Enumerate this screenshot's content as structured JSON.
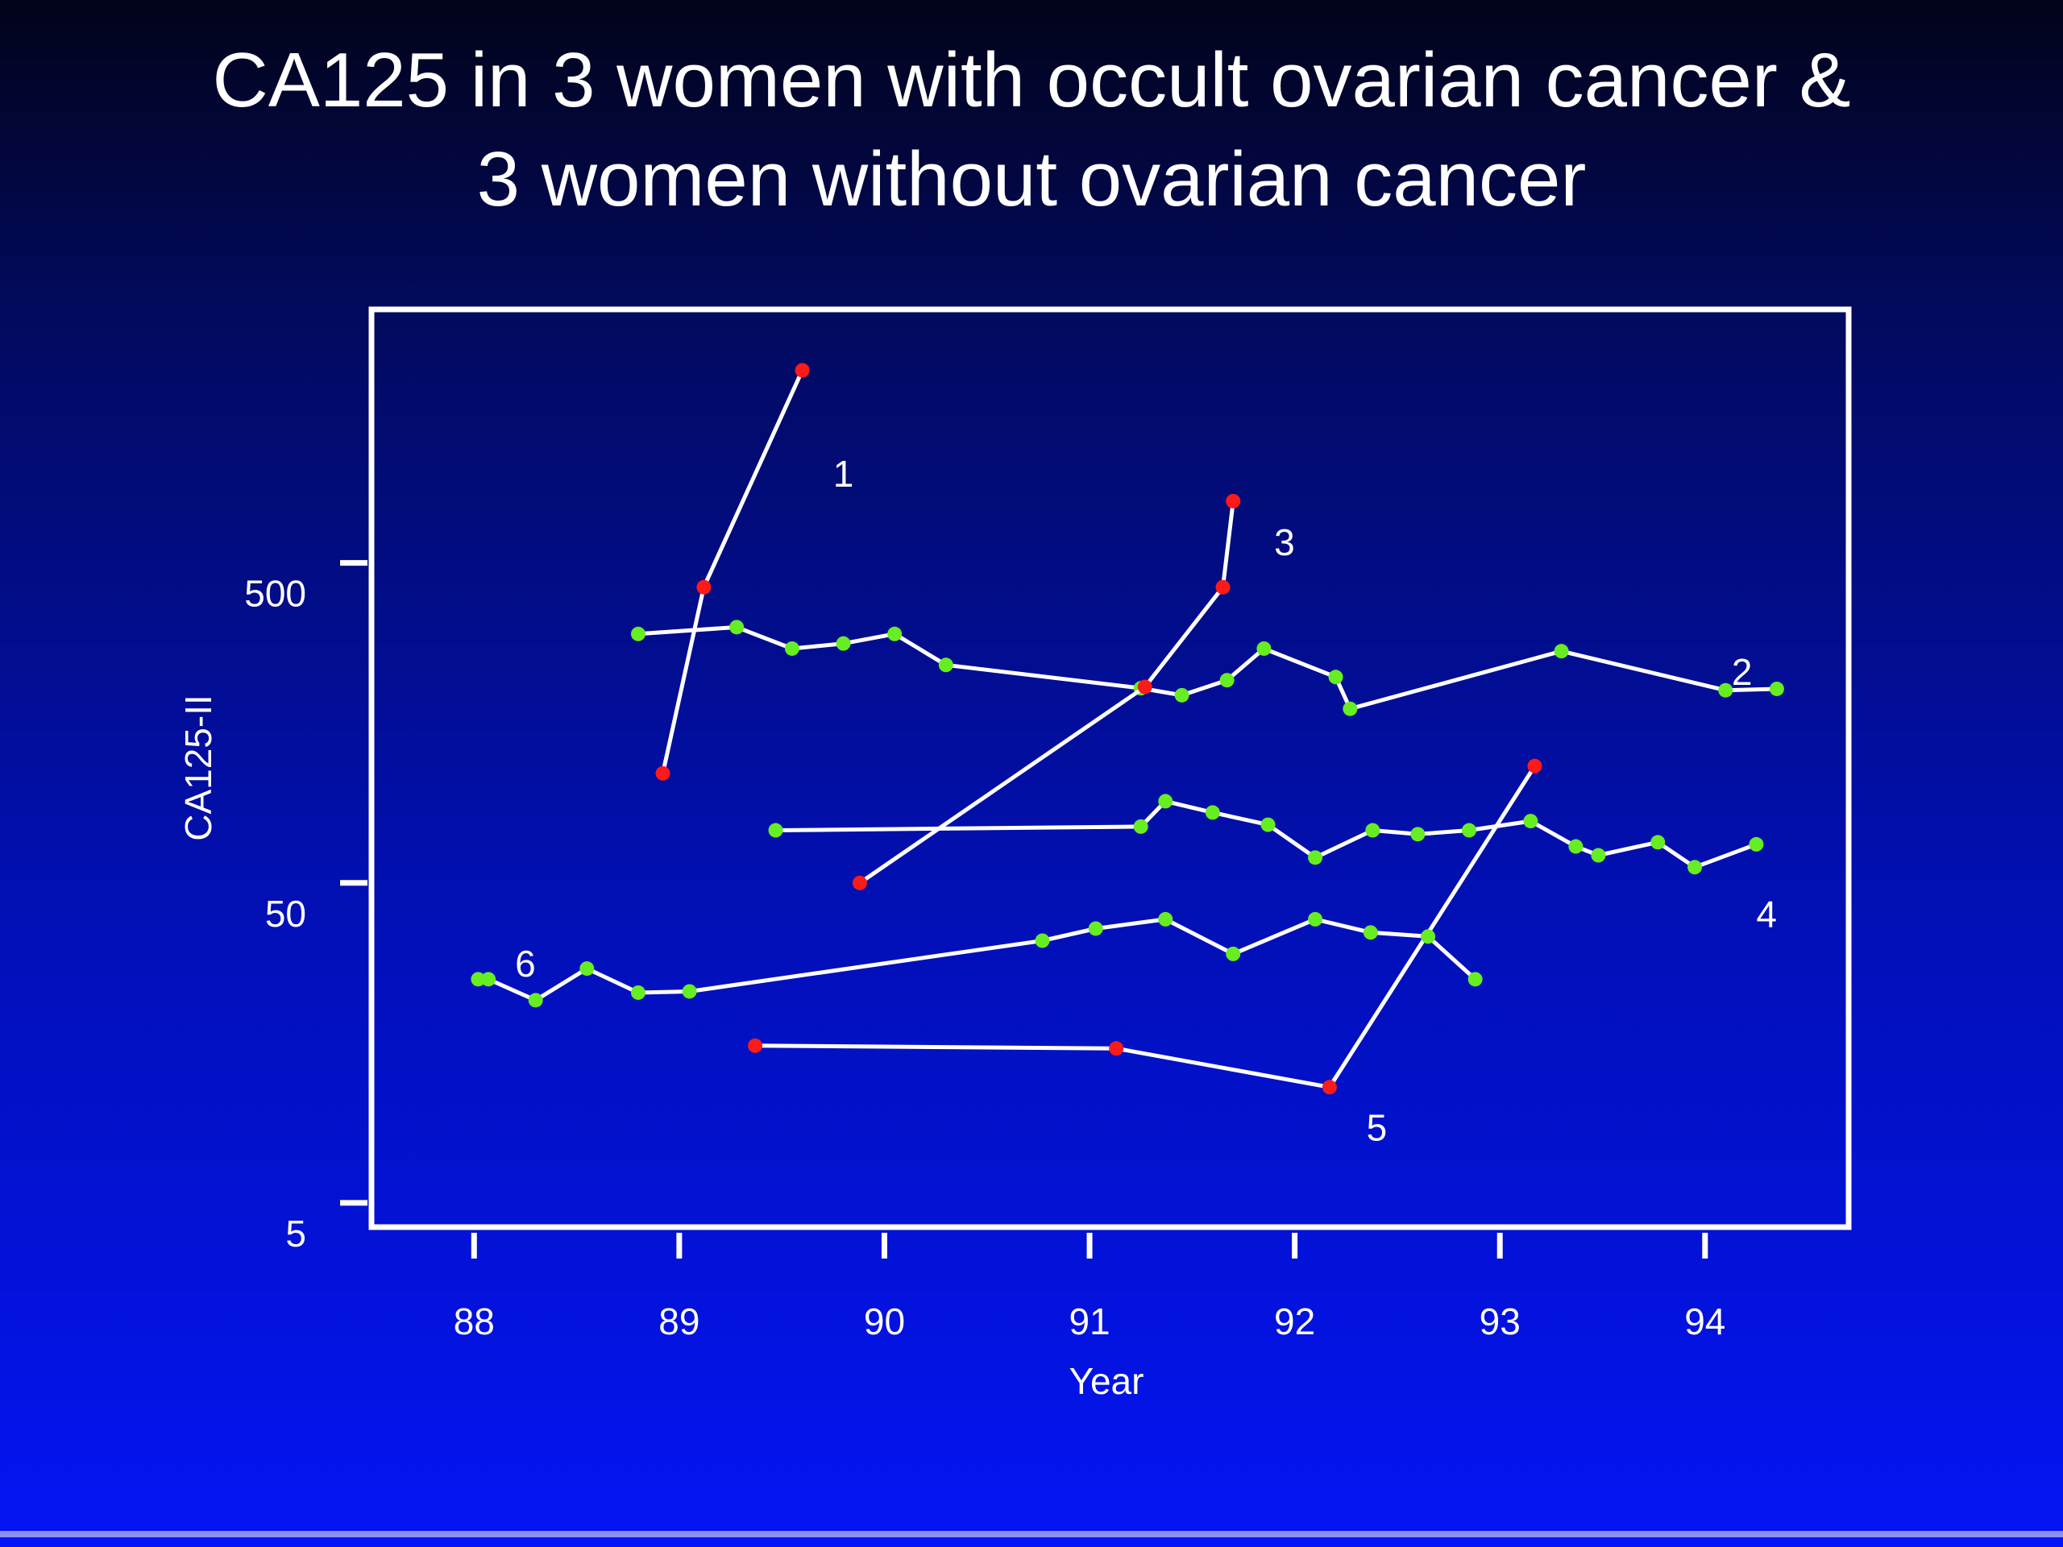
{
  "title": {
    "line1": "CA125 in 3 women with occult ovarian cancer &",
    "line2": "3 women without ovarian cancer"
  },
  "colors": {
    "cancer_point": "#ff1a1a",
    "no_cancer_point": "#66ee22",
    "line": "#ffffff",
    "axis": "#ffffff"
  },
  "chart_data": {
    "type": "line",
    "title": "CA125 in 3 women with occult ovarian cancer & 3 women without ovarian cancer",
    "xlabel": "Year",
    "ylabel": "CA125-II",
    "x_scale": "linear",
    "y_scale": "log",
    "xlim": [
      87.5,
      94.7
    ],
    "ylim": [
      4.2,
      3100
    ],
    "x_ticks": [
      88,
      89,
      90,
      91,
      92,
      93,
      94
    ],
    "x_tick_labels": [
      "88",
      "89",
      "90",
      "91",
      "92",
      "93",
      "94"
    ],
    "y_ticks": [
      5,
      50,
      500
    ],
    "y_tick_labels": [
      "5",
      "50",
      "500"
    ],
    "grid": false,
    "legend": "none",
    "series": [
      {
        "label": "1",
        "ovarian_cancer": true,
        "points": [
          [
            88.92,
            110
          ],
          [
            89.12,
            420
          ],
          [
            89.6,
            2000
          ]
        ],
        "label_x": 89.8,
        "label_y": 950
      },
      {
        "label": "2",
        "ovarian_cancer": false,
        "points": [
          [
            88.8,
            300
          ],
          [
            89.28,
            315
          ],
          [
            89.55,
            270
          ],
          [
            89.8,
            280
          ],
          [
            90.05,
            300
          ],
          [
            90.3,
            240
          ],
          [
            91.25,
            203
          ],
          [
            91.45,
            193
          ],
          [
            91.67,
            215
          ],
          [
            91.85,
            270
          ],
          [
            92.2,
            220
          ],
          [
            92.27,
            175
          ],
          [
            93.3,
            265
          ],
          [
            94.1,
            200
          ],
          [
            94.35,
            202
          ]
        ],
        "label_x": 94.18,
        "label_y": 228
      },
      {
        "label": "3",
        "ovarian_cancer": true,
        "points": [
          [
            89.88,
            50
          ],
          [
            91.27,
            205
          ],
          [
            91.65,
            420
          ],
          [
            91.7,
            780
          ]
        ],
        "label_x": 91.95,
        "label_y": 580
      },
      {
        "label": "4",
        "ovarian_cancer": false,
        "points": [
          [
            89.47,
            73
          ],
          [
            91.25,
            75
          ],
          [
            91.37,
            90
          ],
          [
            91.6,
            83
          ],
          [
            91.87,
            76
          ],
          [
            92.1,
            60
          ],
          [
            92.38,
            73
          ],
          [
            92.6,
            71
          ],
          [
            92.85,
            73
          ],
          [
            93.15,
            78
          ],
          [
            93.37,
            65
          ],
          [
            93.48,
            61
          ],
          [
            93.77,
            67
          ],
          [
            93.95,
            56
          ],
          [
            94.25,
            66
          ]
        ],
        "label_x": 94.3,
        "label_y": 40
      },
      {
        "label": "5",
        "ovarian_cancer": true,
        "points": [
          [
            89.37,
            15.5
          ],
          [
            91.13,
            15.2
          ],
          [
            92.17,
            11.5
          ],
          [
            93.17,
            116
          ]
        ],
        "label_x": 92.4,
        "label_y": 8.6
      },
      {
        "label": "6",
        "ovarian_cancer": false,
        "points": [
          [
            88.02,
            25
          ],
          [
            88.07,
            25
          ],
          [
            88.3,
            21.5
          ],
          [
            88.55,
            27
          ],
          [
            88.8,
            22.7
          ],
          [
            89.05,
            22.9
          ],
          [
            90.77,
            33
          ],
          [
            91.03,
            36
          ],
          [
            91.37,
            38.5
          ],
          [
            91.7,
            30
          ],
          [
            92.1,
            38.5
          ],
          [
            92.37,
            35
          ],
          [
            92.65,
            34
          ],
          [
            92.88,
            25
          ]
        ],
        "label_x": 88.25,
        "label_y": 28
      }
    ]
  }
}
